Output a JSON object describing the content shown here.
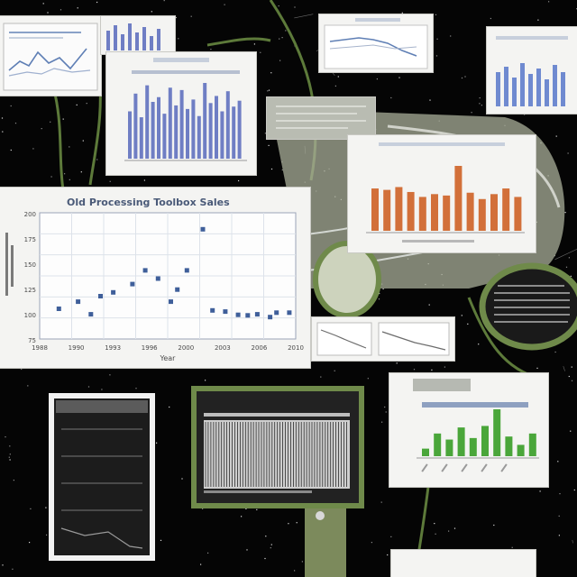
{
  "scene": {
    "background": "#050505",
    "accent_olive": "#6f8a4a",
    "description_elements": [
      "cluttered-chart-collage",
      "glass-tube-sculpture",
      "green-vines"
    ]
  },
  "main_scatter": {
    "title": "Old Processing Toolbox Sales",
    "xlabel": "Year",
    "x_ticks": [
      "1988",
      "1990",
      "1993",
      "1996",
      "2000",
      "2003",
      "2006",
      "2010"
    ],
    "y_ticks": [
      "200",
      "175",
      "150",
      "125",
      "100",
      "75"
    ],
    "point_color": "#3f5f9a"
  },
  "chart_data": [
    {
      "type": "scatter",
      "title": "Old Processing Toolbox Sales",
      "xlabel": "Year",
      "ylabel": "",
      "x": [
        0.6,
        1.2,
        1.6,
        1.9,
        2.3,
        2.9,
        3.3,
        3.7,
        4.1,
        4.3,
        4.6,
        5.1,
        5.4,
        5.8,
        6.2,
        6.5,
        6.8,
        7.2,
        7.4,
        7.8
      ],
      "y": [
        95,
        108,
        85,
        118,
        125,
        140,
        165,
        150,
        108,
        130,
        165,
        240,
        92,
        90,
        84,
        83,
        85,
        80,
        88,
        88
      ],
      "xlim": [
        0,
        8
      ],
      "ylim": [
        40,
        270
      ]
    },
    {
      "type": "bar",
      "title": "",
      "values": [
        60,
        58,
        62,
        55,
        48,
        52,
        50,
        92,
        54,
        45,
        52,
        60,
        48
      ],
      "color": "#d2703a"
    },
    {
      "type": "bar",
      "title": "",
      "values": [
        10,
        30,
        22,
        38,
        24,
        40,
        62,
        26,
        15,
        30
      ],
      "color": "#4aa63a"
    },
    {
      "type": "bar",
      "title": "",
      "values": [
        40,
        55,
        35,
        62,
        48,
        52,
        38,
        60,
        45,
        58,
        42,
        50,
        36,
        64,
        47,
        53,
        40,
        57,
        44,
        49
      ],
      "color": "#6f7ec4"
    }
  ]
}
